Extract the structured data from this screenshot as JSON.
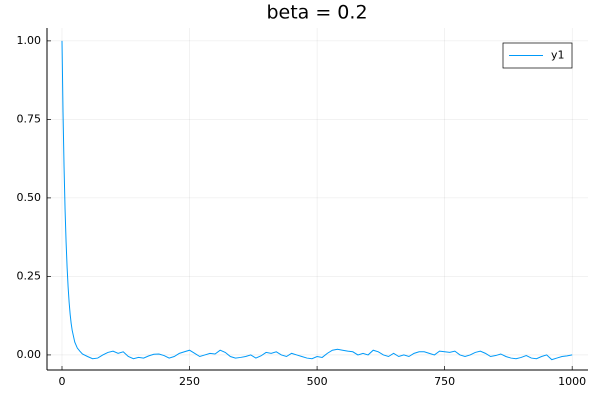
{
  "chart_data": {
    "type": "line",
    "title": "beta = 0.2",
    "x": [
      0,
      2,
      4,
      6,
      8,
      10,
      12,
      14,
      16,
      18,
      20,
      25,
      30,
      35,
      40,
      50,
      60,
      70,
      80,
      90,
      100,
      110,
      120,
      130,
      140,
      150,
      160,
      170,
      180,
      190,
      200,
      210,
      220,
      230,
      240,
      250,
      260,
      270,
      280,
      290,
      300,
      310,
      320,
      330,
      340,
      350,
      360,
      370,
      380,
      390,
      400,
      410,
      420,
      430,
      440,
      450,
      460,
      470,
      480,
      490,
      500,
      510,
      520,
      530,
      540,
      550,
      560,
      570,
      580,
      590,
      600,
      610,
      620,
      630,
      640,
      650,
      660,
      670,
      680,
      690,
      700,
      710,
      720,
      730,
      740,
      750,
      760,
      770,
      780,
      790,
      800,
      810,
      820,
      830,
      840,
      850,
      860,
      870,
      880,
      890,
      900,
      910,
      920,
      930,
      940,
      950,
      960,
      970,
      980,
      990,
      1000
    ],
    "series": [
      {
        "name": "y1",
        "color": "#009af9",
        "values": [
          1,
          0.774,
          0.6,
          0.464,
          0.36,
          0.279,
          0.216,
          0.167,
          0.129,
          0.1,
          0.078,
          0.041,
          0.022,
          0.012,
          0.003,
          -0.005,
          -0.012,
          -0.01,
          0,
          0.008,
          0.012,
          0.005,
          0.01,
          -0.005,
          -0.012,
          -0.008,
          -0.01,
          -0.003,
          0.002,
          0.003,
          -0.002,
          -0.01,
          -0.005,
          0.005,
          0.01,
          0.015,
          0.005,
          -0.005,
          0,
          0.005,
          0.003,
          0.015,
          0.008,
          -0.005,
          -0.01,
          -0.008,
          -0.005,
          0,
          -0.01,
          -0.003,
          0.008,
          0.005,
          0.01,
          0,
          -0.005,
          0.005,
          0,
          -0.005,
          -0.01,
          -0.012,
          -0.005,
          -0.008,
          0.005,
          0.015,
          0.018,
          0.015,
          0.012,
          0.01,
          0,
          0.005,
          0,
          0.015,
          0.01,
          0,
          -0.005,
          0.005,
          -0.005,
          0,
          -0.005,
          0.005,
          0.01,
          0.01,
          0.005,
          0,
          0.012,
          0.01,
          0.008,
          0.012,
          0,
          -0.005,
          0,
          0.008,
          0.012,
          0.005,
          -0.005,
          -0.002,
          0.003,
          -0.005,
          -0.01,
          -0.012,
          -0.008,
          -0.002,
          -0.01,
          -0.012,
          -0.005,
          0,
          -0.015,
          -0.01,
          -0.005,
          -0.003,
          0
        ]
      }
    ],
    "xlim": [
      -29.4,
      1031
    ],
    "xticks": [
      0,
      250,
      500,
      750,
      1000
    ],
    "ylim": [
      -0.048,
      1.041
    ],
    "yticks": [
      {
        "value": 0,
        "label": "0.00"
      },
      {
        "value": 0.25,
        "label": "0.25"
      },
      {
        "value": 0.5,
        "label": "0.50"
      },
      {
        "value": 0.75,
        "label": "0.75"
      },
      {
        "value": 1,
        "label": "1.00"
      }
    ],
    "grid": true,
    "legend": "top-right"
  }
}
